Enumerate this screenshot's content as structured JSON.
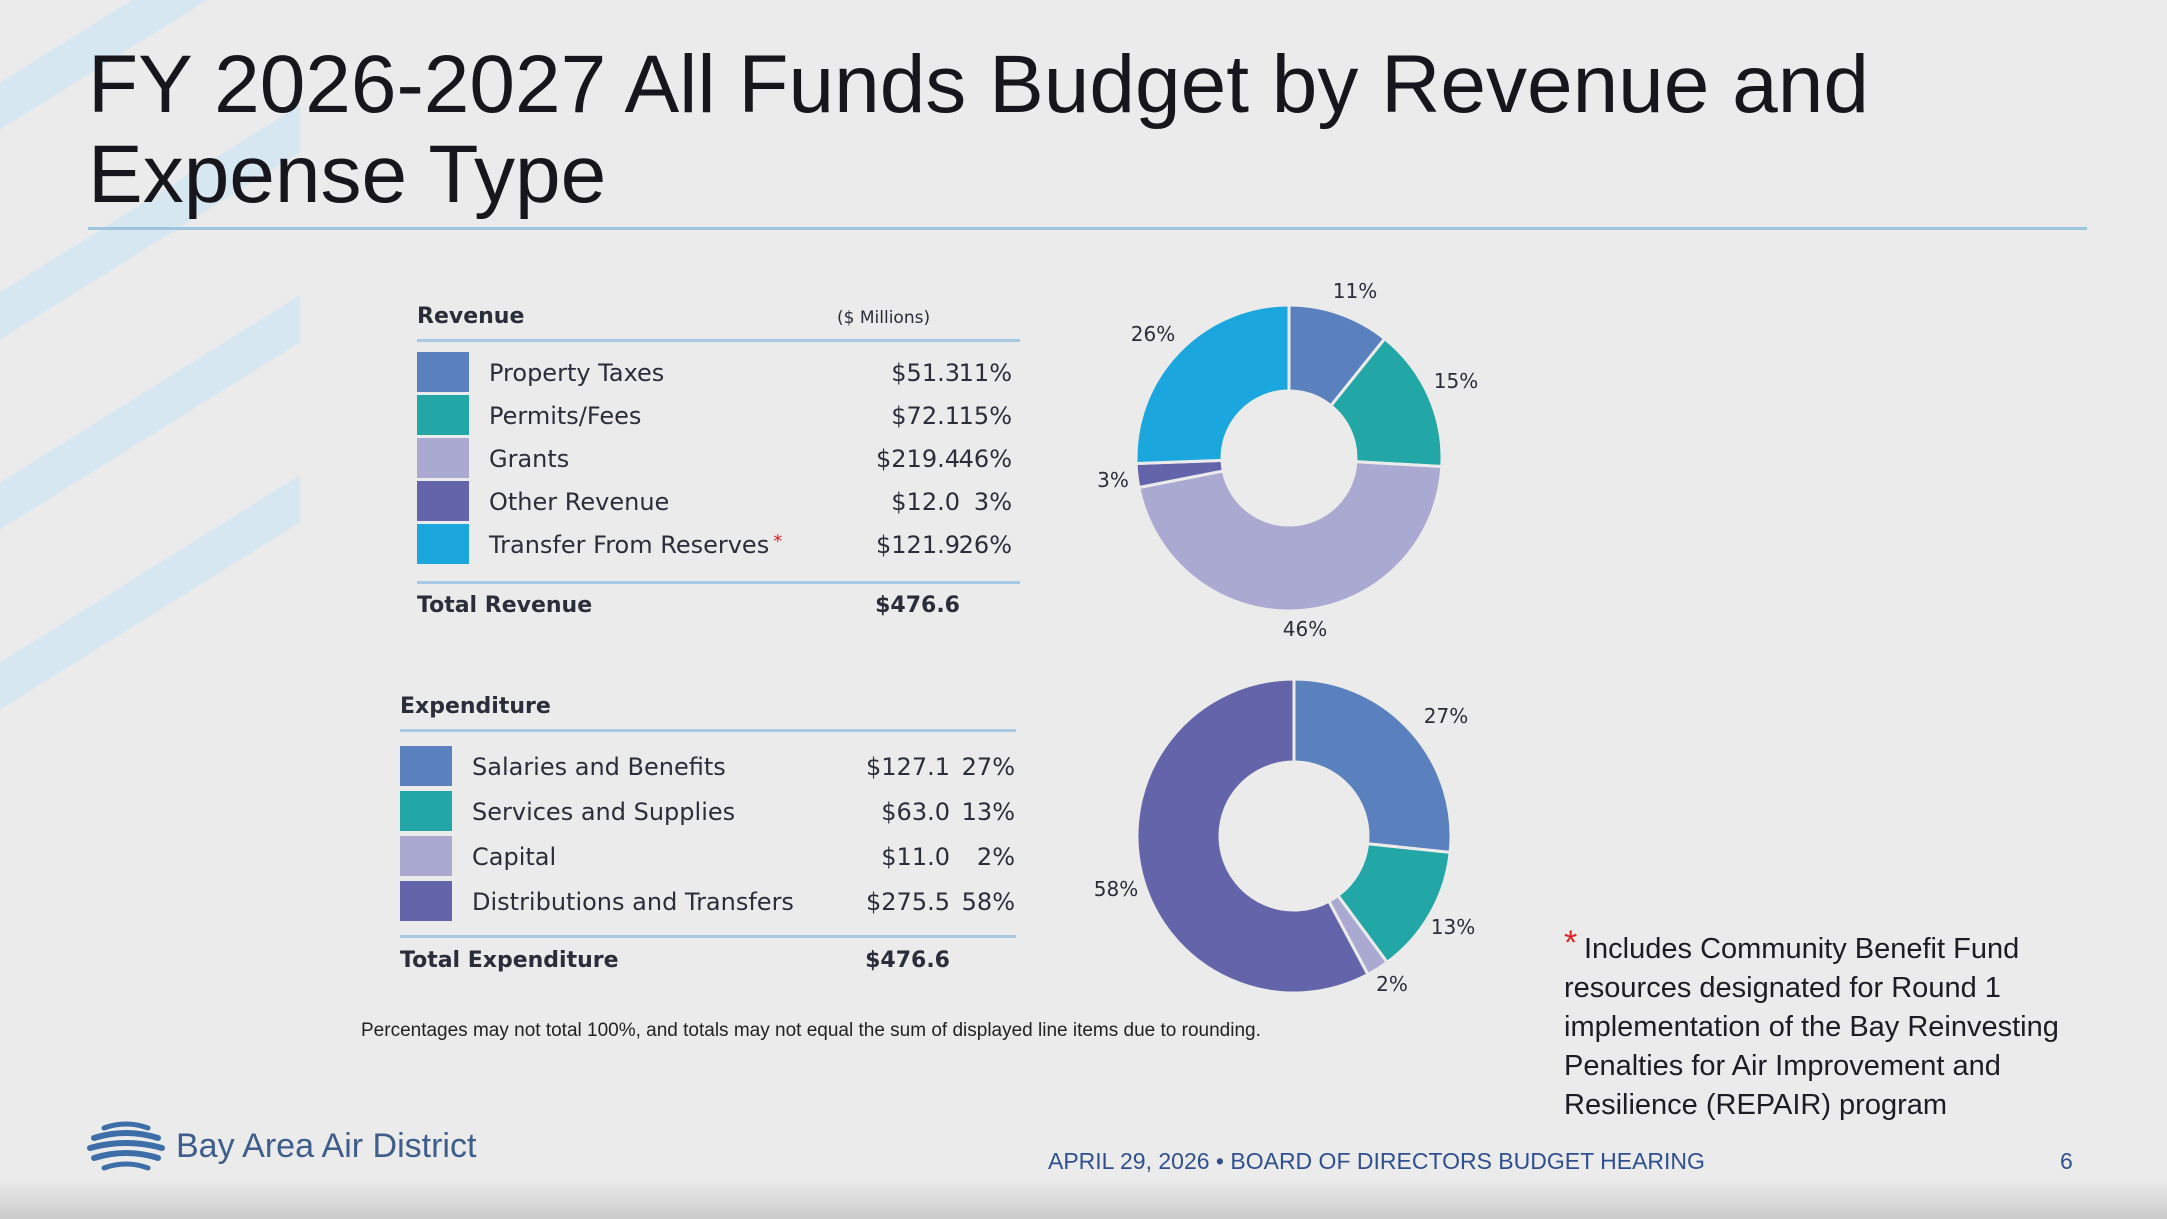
{
  "slide": {
    "title": "FY 2026-2027 All Funds Budget by Revenue and Expense Type",
    "note": "Percentages may not total 100%, and totals may not equal the sum of displayed line items due to rounding.",
    "footnote_marker": "*",
    "footnote": "Includes Community Benefit Fund resources designated for Round 1 implementation of the Bay Reinvesting Penalties for Air Improvement and Resilience (REPAIR) program",
    "logo_text": "Bay Area Air District",
    "footer": "APRIL 29, 2026 • BOARD OF DIRECTORS BUDGET HEARING",
    "page_number": "6"
  },
  "revenue_table": {
    "header": "Revenue",
    "unit": "($ Millions)",
    "rows": [
      {
        "label": "Property Taxes",
        "amount": "$51.3",
        "pct": "11%",
        "color": "#5a80bd"
      },
      {
        "label": "Permits/Fees",
        "amount": "$72.1",
        "pct": "15%",
        "color": "#23a6a6"
      },
      {
        "label": "Grants",
        "amount": "$219.4",
        "pct": "46%",
        "color": "#a9a9d2"
      },
      {
        "label": "Other Revenue",
        "amount": "$12.0",
        "pct": "3%",
        "color": "#6464aa"
      },
      {
        "label": "Transfer From Reserves",
        "amount": "$121.9",
        "pct": "26%",
        "color": "#1ca6de"
      }
    ],
    "total_label": "Total Revenue",
    "total_amount": "$476.6"
  },
  "expenditure_table": {
    "header": "Expenditure",
    "rows": [
      {
        "label": "Salaries and Benefits",
        "amount": "$127.1",
        "pct": "27%",
        "color": "#5a80bd"
      },
      {
        "label": "Services and Supplies",
        "amount": "$63.0",
        "pct": "13%",
        "color": "#23a6a6"
      },
      {
        "label": "Capital",
        "amount": "$11.0",
        "pct": "2%",
        "color": "#a9a9d2"
      },
      {
        "label": "Distributions and Transfers",
        "amount": "$275.5",
        "pct": "58%",
        "color": "#6464aa"
      }
    ],
    "total_label": "Total Expenditure",
    "total_amount": "$476.6"
  },
  "chart_data": [
    {
      "type": "pie",
      "subtype": "donut",
      "categories": [
        "Property Taxes",
        "Permits/Fees",
        "Grants",
        "Other Revenue",
        "Transfer From Reserves"
      ],
      "values": [
        51.3,
        72.1,
        219.4,
        12.0,
        121.9
      ],
      "labels": [
        "11%",
        "15%",
        "46%",
        "3%",
        "26%"
      ],
      "colors": [
        "#5a80bd",
        "#23a6a6",
        "#a9a9d2",
        "#6464aa",
        "#1ca6de"
      ]
    },
    {
      "type": "pie",
      "subtype": "donut",
      "categories": [
        "Salaries and Benefits",
        "Services and Supplies",
        "Capital",
        "Distributions and Transfers"
      ],
      "values": [
        127.1,
        63.0,
        11.0,
        275.5
      ],
      "labels": [
        "27%",
        "13%",
        "2%",
        "58%"
      ],
      "colors": [
        "#5a80bd",
        "#23a6a6",
        "#a9a9d2",
        "#6464aa"
      ]
    }
  ]
}
